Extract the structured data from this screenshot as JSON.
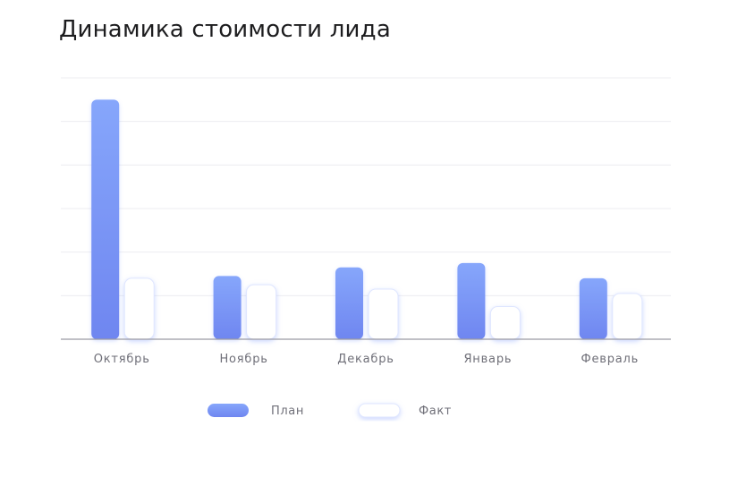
{
  "title": "Динамика стоимости лида",
  "colors": {
    "plan": "#7f9cf8",
    "plan_dark": "#6f86f0",
    "fact_fill": "#ffffff",
    "fact_shadow": "#c7d3ff",
    "grid": "#ececf1",
    "axis": "#9a9aa3"
  },
  "chart_data": {
    "type": "bar",
    "categories": [
      "Октябрь",
      "Ноябрь",
      "Декабрь",
      "Январь",
      "Февраль"
    ],
    "series": [
      {
        "name": "План",
        "values": [
          55,
          14.5,
          16.5,
          17.5,
          14
        ]
      },
      {
        "name": "Факт",
        "values": [
          14,
          12.5,
          11.5,
          7.5,
          10.5
        ]
      }
    ],
    "ylim": [
      0,
      60
    ],
    "grid": true,
    "legend": "bottom"
  }
}
